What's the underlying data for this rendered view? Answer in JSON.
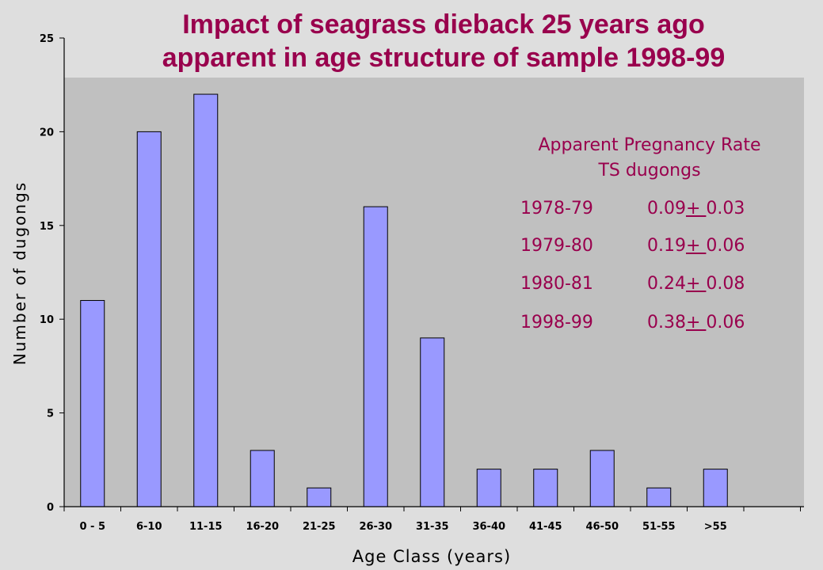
{
  "chart_data": {
    "type": "bar",
    "title_lines": [
      "Impact of seagrass dieback 25 years ago",
      "apparent in age structure of sample 1998-99"
    ],
    "xlabel": "Age Class (years)",
    "ylabel": "Number of dugongs",
    "categories": [
      "0 - 5",
      "6-10",
      "11-15",
      "16-20",
      "21-25",
      "26-30",
      "31-35",
      "36-40",
      "41-45",
      "46-50",
      "51-55",
      ">55"
    ],
    "values": [
      11,
      20,
      22,
      3,
      1,
      16,
      9,
      2,
      2,
      3,
      1,
      2
    ],
    "ylim": [
      0,
      25
    ],
    "yticks": [
      0,
      5,
      10,
      15,
      20,
      25
    ],
    "grid": false,
    "legend": false,
    "colors": {
      "bar_fill": "#9999ff",
      "bar_stroke": "#000000",
      "plot_background": "#c0c0c0",
      "page_background": "#dedede",
      "title": "#99004d",
      "annotation": "#99004d"
    },
    "annotation": {
      "title_lines": [
        "Apparent Pregnancy Rate",
        "TS dugongs"
      ],
      "rows": [
        {
          "period": "1978-79",
          "rate": "0.09",
          "pm": "+ ",
          "se": "0.03"
        },
        {
          "period": "1979-80",
          "rate": "0.19",
          "pm": "+ ",
          "se": "0.06"
        },
        {
          "period": "1980-81",
          "rate": "0.24",
          "pm": "+ ",
          "se": "0.08"
        },
        {
          "period": "1998-99",
          "rate": "0.38",
          "pm": "+ ",
          "se": "0.06"
        }
      ]
    }
  }
}
